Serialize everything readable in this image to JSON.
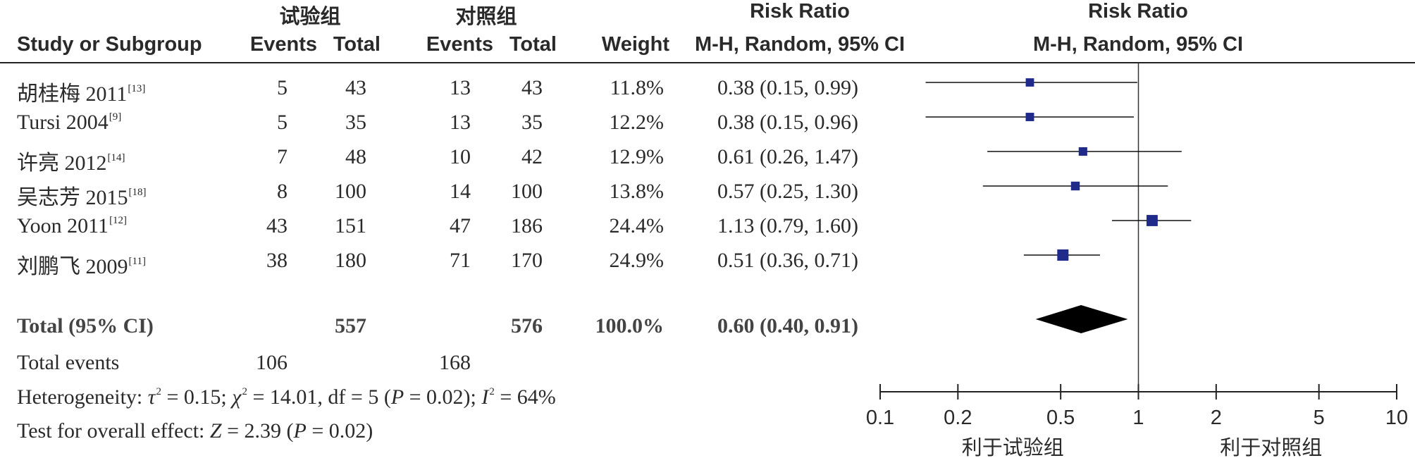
{
  "headers": {
    "group_exp": "试验组",
    "group_ctl": "对照组",
    "rr_title": "Risk Ratio",
    "rr_title_plot": "Risk Ratio",
    "study": "Study or Subgroup",
    "events_e": "Events",
    "total_e": "Total",
    "events_c": "Events",
    "total_c": "Total",
    "weight": "Weight",
    "method": "M-H, Random, 95% CI",
    "method_plot": "M-H, Random, 95% CI"
  },
  "studies": [
    {
      "name": "胡桂梅 2011",
      "ref": "[13]",
      "ev_e": "5",
      "tot_e": "43",
      "ev_c": "13",
      "tot_c": "43",
      "weight": "11.8%",
      "ci": "0.38 (0.15, 0.99)"
    },
    {
      "name": "Tursi 2004",
      "ref": "[9]",
      "ev_e": "5",
      "tot_e": "35",
      "ev_c": "13",
      "tot_c": "35",
      "weight": "12.2%",
      "ci": "0.38 (0.15, 0.96)"
    },
    {
      "name": "许亮 2012",
      "ref": "[14]",
      "ev_e": "7",
      "tot_e": "48",
      "ev_c": "10",
      "tot_c": "42",
      "weight": "12.9%",
      "ci": "0.61 (0.26, 1.47)"
    },
    {
      "name": "吴志芳 2015",
      "ref": "[18]",
      "ev_e": "8",
      "tot_e": "100",
      "ev_c": "14",
      "tot_c": "100",
      "weight": "13.8%",
      "ci": "0.57 (0.25, 1.30)"
    },
    {
      "name": "Yoon 2011",
      "ref": "[12]",
      "ev_e": "43",
      "tot_e": "151",
      "ev_c": "47",
      "tot_c": "186",
      "weight": "24.4%",
      "ci": "1.13 (0.79, 1.60)"
    },
    {
      "name": "刘鹏飞 2009",
      "ref": "[11]",
      "ev_e": "38",
      "tot_e": "180",
      "ev_c": "71",
      "tot_c": "170",
      "weight": "24.9%",
      "ci": "0.51 (0.36, 0.71)"
    }
  ],
  "total": {
    "label": "Total (95% CI)",
    "tot_e": "557",
    "tot_c": "576",
    "weight": "100.0%",
    "ci": "0.60 (0.40, 0.91)"
  },
  "events": {
    "label": "Total events",
    "e": "106",
    "c": "168"
  },
  "heterogeneity": {
    "prefix": "Heterogeneity: ",
    "tau_sym": "τ",
    "tau_val": " = 0.15; ",
    "chi_sym": "χ",
    "chi_val": " = 14.01, df = 5 (",
    "p_sym": "P",
    "p_val": " = 0.02); ",
    "i_sym": "I",
    "i_val": " = 64%",
    "sq": "2"
  },
  "overall": {
    "prefix": "Test for overall effect: ",
    "z_sym": "Z",
    "z_val": " = 2.39 (",
    "p_sym": "P",
    "p_val": " = 0.02)"
  },
  "chart_data": {
    "type": "forest",
    "title": "Risk Ratio",
    "subtitle": "M-H, Random, 95% CI",
    "scale": "log",
    "xlim": [
      0.1,
      10
    ],
    "ticks": [
      0.1,
      0.2,
      0.5,
      1,
      2,
      5,
      10
    ],
    "tick_labels": [
      "0.1",
      "0.2",
      "0.5",
      "1",
      "2",
      "5",
      "10"
    ],
    "favours_left": "利于试验组",
    "favours_right": "利于对照组",
    "marker_color": "#1f2a8a",
    "points": [
      {
        "rr": 0.38,
        "lo": 0.15,
        "hi": 0.99,
        "weight": 11.8
      },
      {
        "rr": 0.38,
        "lo": 0.15,
        "hi": 0.96,
        "weight": 12.2
      },
      {
        "rr": 0.61,
        "lo": 0.26,
        "hi": 1.47,
        "weight": 12.9
      },
      {
        "rr": 0.57,
        "lo": 0.25,
        "hi": 1.3,
        "weight": 13.8
      },
      {
        "rr": 1.13,
        "lo": 0.79,
        "hi": 1.6,
        "weight": 24.4
      },
      {
        "rr": 0.51,
        "lo": 0.36,
        "hi": 0.71,
        "weight": 24.9
      }
    ],
    "pooled": {
      "rr": 0.6,
      "lo": 0.4,
      "hi": 0.91
    }
  }
}
